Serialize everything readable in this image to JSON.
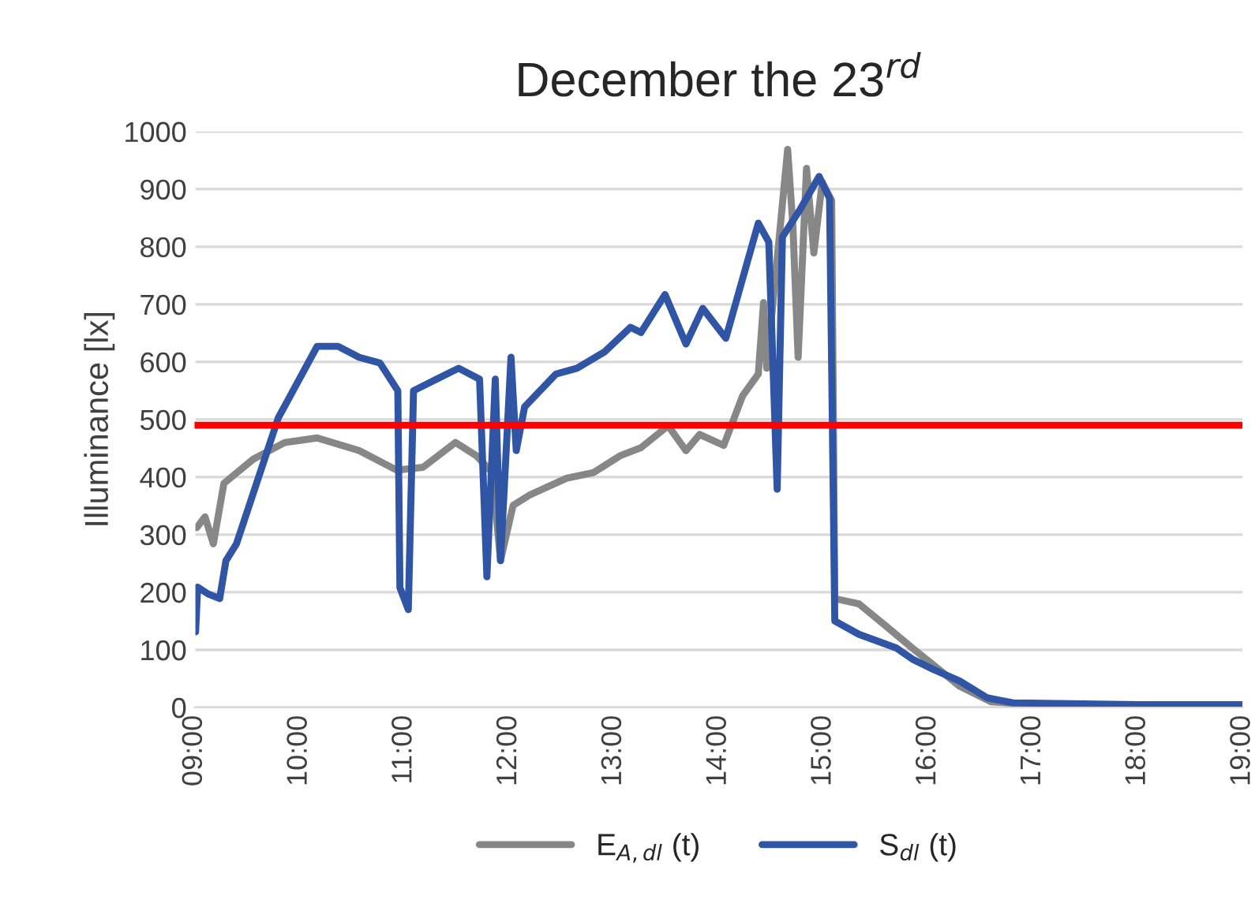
{
  "chart_data": {
    "type": "line",
    "title": "December the 23$^{rd}$",
    "ylabel": "Illuminance [lx]",
    "xlim": [
      9,
      19
    ],
    "ylim": [
      0,
      1000
    ],
    "xticks": [
      {
        "value": 9,
        "label": "09:00"
      },
      {
        "value": 10,
        "label": "10:00"
      },
      {
        "value": 11,
        "label": "11:00"
      },
      {
        "value": 12,
        "label": "12:00"
      },
      {
        "value": 13,
        "label": "13:00"
      },
      {
        "value": 14,
        "label": "14:00"
      },
      {
        "value": 15,
        "label": "15:00"
      },
      {
        "value": 16,
        "label": "16:00"
      },
      {
        "value": 17,
        "label": "17:00"
      },
      {
        "value": 18,
        "label": "18:00"
      },
      {
        "value": 19,
        "label": "19:00"
      }
    ],
    "yticks": [
      0,
      100,
      200,
      300,
      400,
      500,
      600,
      700,
      800,
      900,
      1000
    ],
    "grid": "y",
    "legend": "bottom",
    "marker": "none",
    "line_style": "solid",
    "ref_lines": [
      {
        "axis": "y",
        "value": 490,
        "color": "#ff0000"
      }
    ],
    "series": [
      {
        "name": "E$_{A,dl}$ (t)",
        "color": "#878787",
        "x": [
          9.02,
          9.1,
          9.18,
          9.28,
          9.56,
          9.86,
          10.17,
          10.57,
          10.93,
          11.18,
          11.49,
          11.69,
          11.84,
          11.92,
          12.04,
          12.2,
          12.55,
          12.81,
          13.06,
          13.26,
          13.52,
          13.69,
          13.82,
          14.05,
          14.23,
          14.38,
          14.43,
          14.46,
          14.66,
          14.71,
          14.76,
          14.84,
          14.91,
          14.99,
          15.08,
          15.11,
          15.34,
          15.6,
          15.85,
          16.05,
          16.3,
          16.6,
          17
        ],
        "values": [
          312,
          331,
          284,
          389,
          431,
          460,
          468,
          446,
          412,
          417,
          460,
          437,
          408,
          255,
          351,
          369,
          398,
          408,
          437,
          451,
          489,
          446,
          474,
          455,
          541,
          579,
          703,
          589,
          969,
          836,
          608,
          936,
          789,
          912,
          880,
          189,
          180,
          141,
          103,
          74,
          37,
          10,
          5
        ]
      },
      {
        "name": "S$_{dl}$ (t)",
        "color": "#2f55a4",
        "x": [
          9.01,
          9.03,
          9.13,
          9.24,
          9.3,
          9.4,
          9.8,
          10.17,
          10.37,
          10.57,
          10.77,
          10.94,
          10.96,
          11.04,
          11.09,
          11.31,
          11.52,
          11.72,
          11.79,
          11.87,
          11.92,
          12.02,
          12.07,
          12.15,
          12.45,
          12.65,
          12.91,
          13.16,
          13.26,
          13.49,
          13.69,
          13.85,
          14.07,
          14.38,
          14.48,
          14.56,
          14.61,
          14.78,
          14.96,
          15.06,
          15.11,
          15.34,
          15.7,
          15.85,
          16.05,
          16.3,
          16.56,
          16.81,
          18,
          19
        ],
        "values": [
          131,
          209,
          197,
          189,
          255,
          284,
          503,
          627,
          627,
          608,
          598,
          550,
          208,
          170,
          550,
          570,
          589,
          570,
          227,
          570,
          255,
          608,
          446,
          522,
          579,
          589,
          617,
          660,
          651,
          717,
          631,
          693,
          641,
          841,
          808,
          379,
          817,
          865,
          922,
          884,
          150,
          127,
          103,
          84,
          66,
          46,
          17,
          8,
          5,
          5
        ]
      }
    ]
  }
}
